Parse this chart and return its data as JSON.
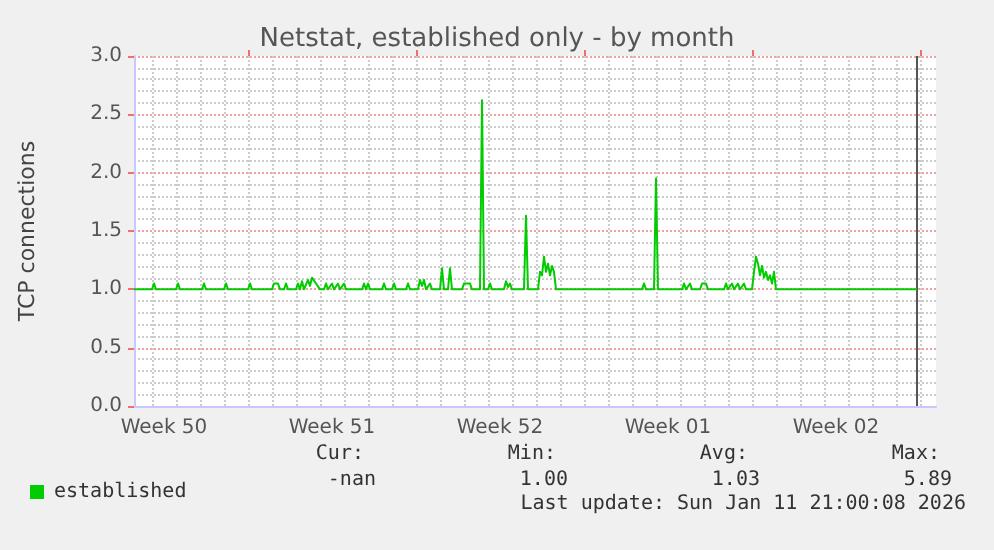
{
  "chart_data": {
    "type": "line",
    "title": "Netstat, established only - by month",
    "ylabel": "TCP connections",
    "xlim": [
      "2025-12-10T06:00",
      "2026-01-12T16:00"
    ],
    "xticks": [
      {
        "value": "2025-12-11T12:00",
        "label": "Week 50"
      },
      {
        "value": "2025-12-15",
        "label": null
      },
      {
        "value": "2025-12-18T12:00",
        "label": "Week 51"
      },
      {
        "value": "2025-12-22",
        "label": null
      },
      {
        "value": "2025-12-25T12:00",
        "label": "Week 52"
      },
      {
        "value": "2025-12-29",
        "label": null
      },
      {
        "value": "2026-01-01T12:00",
        "label": "Week 01"
      },
      {
        "value": "2026-01-05",
        "label": null
      },
      {
        "value": "2026-01-08T12:00",
        "label": "Week 02"
      },
      {
        "value": "2026-01-12",
        "label": null
      }
    ],
    "ylim": [
      0,
      3
    ],
    "yticks": [
      {
        "value": 0,
        "label": "0.0"
      },
      {
        "value": 0.5,
        "label": "0.5"
      },
      {
        "value": 1,
        "label": "1.0"
      },
      {
        "value": 1.5,
        "label": "1.5"
      },
      {
        "value": 2,
        "label": "2.0"
      },
      {
        "value": 2.5,
        "label": "2.5"
      },
      {
        "value": 3,
        "label": "3.0"
      }
    ],
    "grid": true,
    "legend": "bottom left",
    "marker": "none",
    "line_style": "solid",
    "ref_lines": [
      {
        "axis": "x",
        "value": "2026-01-11T21:00",
        "label": null,
        "color": "#555555"
      }
    ],
    "annotations": [
      "Cur:",
      "Min:",
      "Avg:",
      "Max:",
      "-nan",
      "1.00",
      "1.03",
      "5.89",
      "Last update: Sun Jan 11 21:00:08 2026"
    ],
    "series": [
      {
        "name": "established",
        "color": "#00cc00",
        "x": [
          "2025-12-10T06:00",
          "2025-12-11T00:00",
          "2025-12-11T02:00",
          "2025-12-11T04:00",
          "2025-12-12T00:00",
          "2025-12-12T02:00",
          "2025-12-12T04:00",
          "2025-12-13T02:00",
          "2025-12-13T04:00",
          "2025-12-13T06:00",
          "2025-12-14T00:00",
          "2025-12-14T02:00",
          "2025-12-14T04:00",
          "2025-12-15T00:00",
          "2025-12-15T02:00",
          "2025-12-15T04:00",
          "2025-12-16T00:00",
          "2025-12-16T02:00",
          "2025-12-16T06:00",
          "2025-12-16T08:00",
          "2025-12-16T12:00",
          "2025-12-16T14:00",
          "2025-12-16T16:00",
          "2025-12-17T00:00",
          "2025-12-17T02:00",
          "2025-12-17T04:00",
          "2025-12-17T06:00",
          "2025-12-17T08:00",
          "2025-12-17T12:00",
          "2025-12-17T14:00",
          "2025-12-17T16:00",
          "2025-12-17T20:00",
          "2025-12-18T00:00",
          "2025-12-18T04:00",
          "2025-12-18T06:00",
          "2025-12-18T08:00",
          "2025-12-18T12:00",
          "2025-12-18T14:00",
          "2025-12-18T18:00",
          "2025-12-18T20:00",
          "2025-12-19T00:00",
          "2025-12-19T02:00",
          "2025-12-19T18:00",
          "2025-12-19T20:00",
          "2025-12-19T22:00",
          "2025-12-20T00:00",
          "2025-12-20T02:00",
          "2025-12-20T14:00",
          "2025-12-20T16:00",
          "2025-12-20T18:00",
          "2025-12-21T00:00",
          "2025-12-21T02:00",
          "2025-12-21T04:00",
          "2025-12-21T14:00",
          "2025-12-21T16:00",
          "2025-12-21T18:00",
          "2025-12-22T02:00",
          "2025-12-22T04:00",
          "2025-12-22T06:00",
          "2025-12-22T08:00",
          "2025-12-22T10:00",
          "2025-12-22T14:00",
          "2025-12-22T16:00",
          "2025-12-23T00:00",
          "2025-12-23T02:00",
          "2025-12-23T04:00",
          "2025-12-23T08:00",
          "2025-12-23T10:00",
          "2025-12-23T12:00",
          "2025-12-23T22:00",
          "2025-12-24T00:00",
          "2025-12-24T06:00",
          "2025-12-24T08:00",
          "2025-12-24T16:00",
          "2025-12-24T18:00",
          "2025-12-24T20:00",
          "2025-12-25T00:00",
          "2025-12-25T02:00",
          "2025-12-25T04:00",
          "2025-12-25T16:00",
          "2025-12-25T18:00",
          "2025-12-25T20:00",
          "2025-12-25T22:00",
          "2025-12-26T00:00",
          "2025-12-26T12:00",
          "2025-12-26T14:00",
          "2025-12-26T16:00",
          "2025-12-27T02:00",
          "2025-12-27T04:00",
          "2025-12-27T06:00",
          "2025-12-27T08:00",
          "2025-12-27T10:00",
          "2025-12-27T12:00",
          "2025-12-27T14:00",
          "2025-12-27T16:00",
          "2025-12-27T18:00",
          "2025-12-27T20:00",
          "2025-12-31T10:00",
          "2025-12-31T12:00",
          "2025-12-31T14:00",
          "2025-12-31T22:00",
          "2026-01-01T00:00",
          "2026-01-01T02:00",
          "2026-01-02T02:00",
          "2026-01-02T04:00",
          "2026-01-02T06:00",
          "2026-01-02T10:00",
          "2026-01-02T12:00",
          "2026-01-02T20:00",
          "2026-01-02T22:00",
          "2026-01-03T02:00",
          "2026-01-03T04:00",
          "2026-01-03T20:00",
          "2026-01-03T22:00",
          "2026-01-04T00:00",
          "2026-01-04T04:00",
          "2026-01-04T06:00",
          "2026-01-04T10:00",
          "2026-01-04T12:00",
          "2026-01-04T16:00",
          "2026-01-04T18:00",
          "2026-01-05T00:00",
          "2026-01-05T02:00",
          "2026-01-05T04:00",
          "2026-01-05T06:00",
          "2026-01-05T08:00",
          "2026-01-05T10:00",
          "2026-01-05T12:00",
          "2026-01-05T14:00",
          "2026-01-05T16:00",
          "2026-01-05T18:00",
          "2026-01-05T20:00",
          "2026-01-05T22:00",
          "2026-01-06T00:00",
          "2026-01-11T21:00"
        ],
        "values": [
          1.0,
          1.0,
          1.05,
          1.0,
          1.0,
          1.05,
          1.0,
          1.0,
          1.05,
          1.0,
          1.0,
          1.05,
          1.0,
          1.0,
          1.05,
          1.0,
          1.0,
          1.05,
          1.05,
          1.0,
          1.0,
          1.05,
          1.0,
          1.0,
          1.05,
          1.0,
          1.07,
          1.0,
          1.08,
          1.03,
          1.1,
          1.05,
          1.0,
          1.0,
          1.05,
          1.0,
          1.05,
          1.0,
          1.05,
          1.0,
          1.05,
          1.0,
          1.0,
          1.05,
          1.0,
          1.05,
          1.0,
          1.0,
          1.05,
          1.0,
          1.0,
          1.05,
          1.0,
          1.0,
          1.05,
          1.0,
          1.0,
          1.08,
          1.03,
          1.08,
          1.0,
          1.05,
          1.0,
          1.0,
          1.18,
          1.0,
          1.0,
          1.18,
          1.0,
          1.0,
          1.05,
          1.05,
          1.0,
          1.0,
          2.62,
          1.0,
          1.0,
          1.05,
          1.0,
          1.0,
          1.07,
          1.02,
          1.05,
          1.0,
          1.0,
          1.63,
          1.0,
          1.0,
          1.15,
          1.12,
          1.28,
          1.15,
          1.22,
          1.12,
          1.2,
          1.15,
          1.0,
          1.0,
          1.05,
          1.0,
          1.0,
          1.95,
          1.0,
          1.0,
          1.05,
          1.0,
          1.05,
          1.0,
          1.0,
          1.05,
          1.05,
          1.0,
          1.0,
          1.05,
          1.0,
          1.05,
          1.0,
          1.05,
          1.0,
          1.05,
          1.0,
          1.0,
          1.15,
          1.28,
          1.22,
          1.12,
          1.2,
          1.1,
          1.15,
          1.08,
          1.12,
          1.05,
          1.15,
          1.0,
          1.0
        ]
      }
    ]
  }
}
